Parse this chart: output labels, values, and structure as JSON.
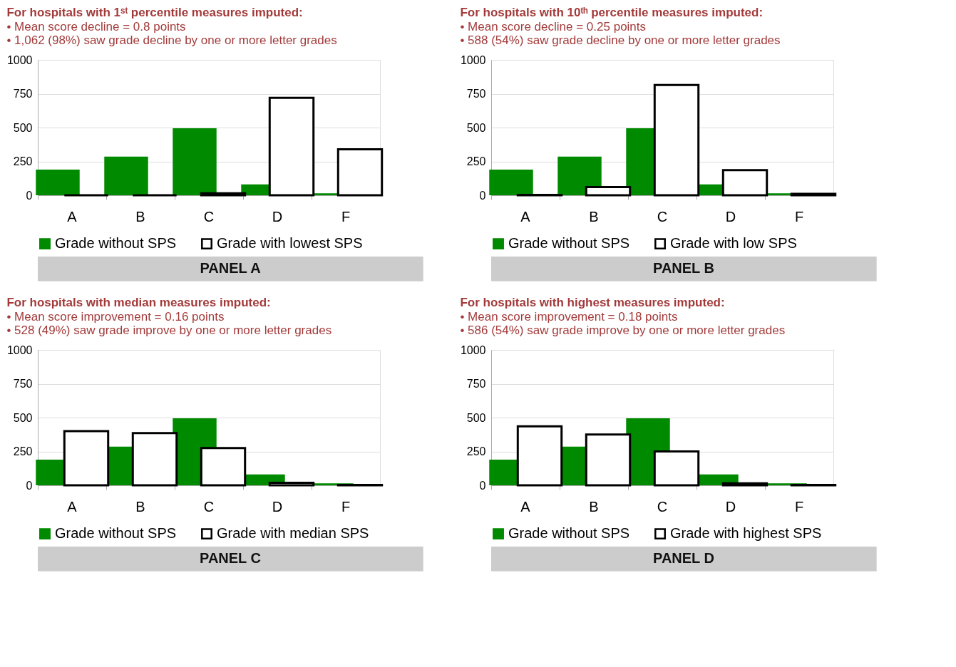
{
  "chart_data": [
    {
      "type": "bar",
      "title": "For hospitals with 1ˢᵗ percentile measures imputed:",
      "annotations": [
        "• Mean score decline = 0.8 points",
        "• 1,062 (98%) saw grade decline by one or more letter grades",
        "PANEL A"
      ],
      "categories": [
        "A",
        "B",
        "C",
        "D",
        "F"
      ],
      "series": [
        {
          "name": "Grade without SPS",
          "color": "#008a00",
          "values": [
            190,
            285,
            495,
            80,
            15
          ]
        },
        {
          "name": "Grade with lowest SPS",
          "color": "#000000",
          "values": [
            0,
            0,
            15,
            720,
            340
          ]
        }
      ],
      "ylim": [
        0,
        1000
      ],
      "yticks": [
        0,
        250,
        500,
        750,
        1000
      ],
      "grid": "y",
      "legend": "bottom"
    },
    {
      "type": "bar",
      "title": "For hospitals with 10ᵗʰ percentile measures imputed:",
      "annotations": [
        "• Mean score decline = 0.25 points",
        "• 588 (54%) saw grade decline by one or more letter grades",
        "PANEL B"
      ],
      "categories": [
        "A",
        "B",
        "C",
        "D",
        "F"
      ],
      "series": [
        {
          "name": "Grade without SPS",
          "color": "#008a00",
          "values": [
            190,
            285,
            495,
            80,
            15
          ]
        },
        {
          "name": "Grade with low SPS",
          "color": "#000000",
          "values": [
            2,
            60,
            815,
            185,
            10
          ]
        }
      ],
      "ylim": [
        0,
        1000
      ],
      "yticks": [
        0,
        250,
        500,
        750,
        1000
      ],
      "grid": "y",
      "legend": "bottom"
    },
    {
      "type": "bar",
      "title": "For hospitals with median measures imputed:",
      "annotations": [
        "• Mean score improvement = 0.16 points",
        "• 528 (49%) saw grade improve by one or more letter grades",
        "PANEL C"
      ],
      "categories": [
        "A",
        "B",
        "C",
        "D",
        "F"
      ],
      "series": [
        {
          "name": "Grade without SPS",
          "color": "#008a00",
          "values": [
            190,
            285,
            495,
            80,
            15
          ]
        },
        {
          "name": "Grade with median SPS",
          "color": "#000000",
          "values": [
            400,
            385,
            275,
            18,
            2
          ]
        }
      ],
      "ylim": [
        0,
        1000
      ],
      "yticks": [
        0,
        250,
        500,
        750,
        1000
      ],
      "grid": "y",
      "legend": "bottom"
    },
    {
      "type": "bar",
      "title": "For hospitals with highest measures imputed:",
      "annotations": [
        "• Mean score improvement = 0.18 points",
        "• 586 (54%) saw grade improve by one or more letter grades",
        "PANEL D"
      ],
      "categories": [
        "A",
        "B",
        "C",
        "D",
        "F"
      ],
      "series": [
        {
          "name": "Grade without SPS",
          "color": "#008a00",
          "values": [
            190,
            285,
            495,
            80,
            15
          ]
        },
        {
          "name": "Grade with highest SPS",
          "color": "#000000",
          "values": [
            435,
            375,
            250,
            15,
            2
          ]
        }
      ],
      "ylim": [
        0,
        1000
      ],
      "yticks": [
        0,
        250,
        500,
        750,
        1000
      ],
      "grid": "y",
      "legend": "bottom"
    }
  ]
}
